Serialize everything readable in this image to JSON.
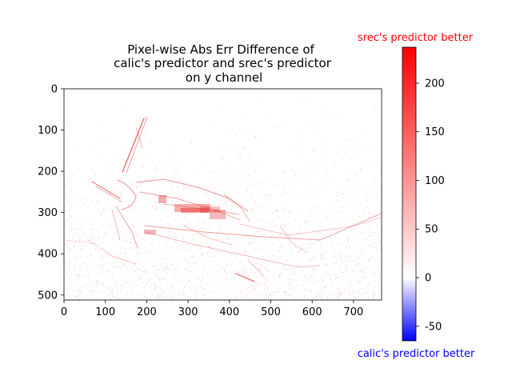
{
  "chart_data": {
    "type": "heatmap",
    "title_lines": [
      "Pixel-wise Abs Err Difference of",
      "calic's predictor and srec's predictor",
      "on y channel"
    ],
    "x_ticks": [
      "0",
      "100",
      "200",
      "300",
      "400",
      "500",
      "600",
      "700"
    ],
    "y_ticks": [
      "0",
      "100",
      "200",
      "300",
      "400",
      "500"
    ],
    "xlim": [
      0,
      768
    ],
    "ylim": [
      512,
      0
    ],
    "colorbar": {
      "ticks": [
        "-50",
        "0",
        "50",
        "100",
        "150",
        "200"
      ],
      "tick_values": [
        -50,
        0,
        50,
        100,
        150,
        200
      ],
      "range": [
        -65,
        237
      ],
      "top_label": "srec's predictor better",
      "bottom_label": "calic's predictor better",
      "top_color": "#ff0000",
      "bottom_color": "#0000ff",
      "colormap": "bwr"
    }
  }
}
